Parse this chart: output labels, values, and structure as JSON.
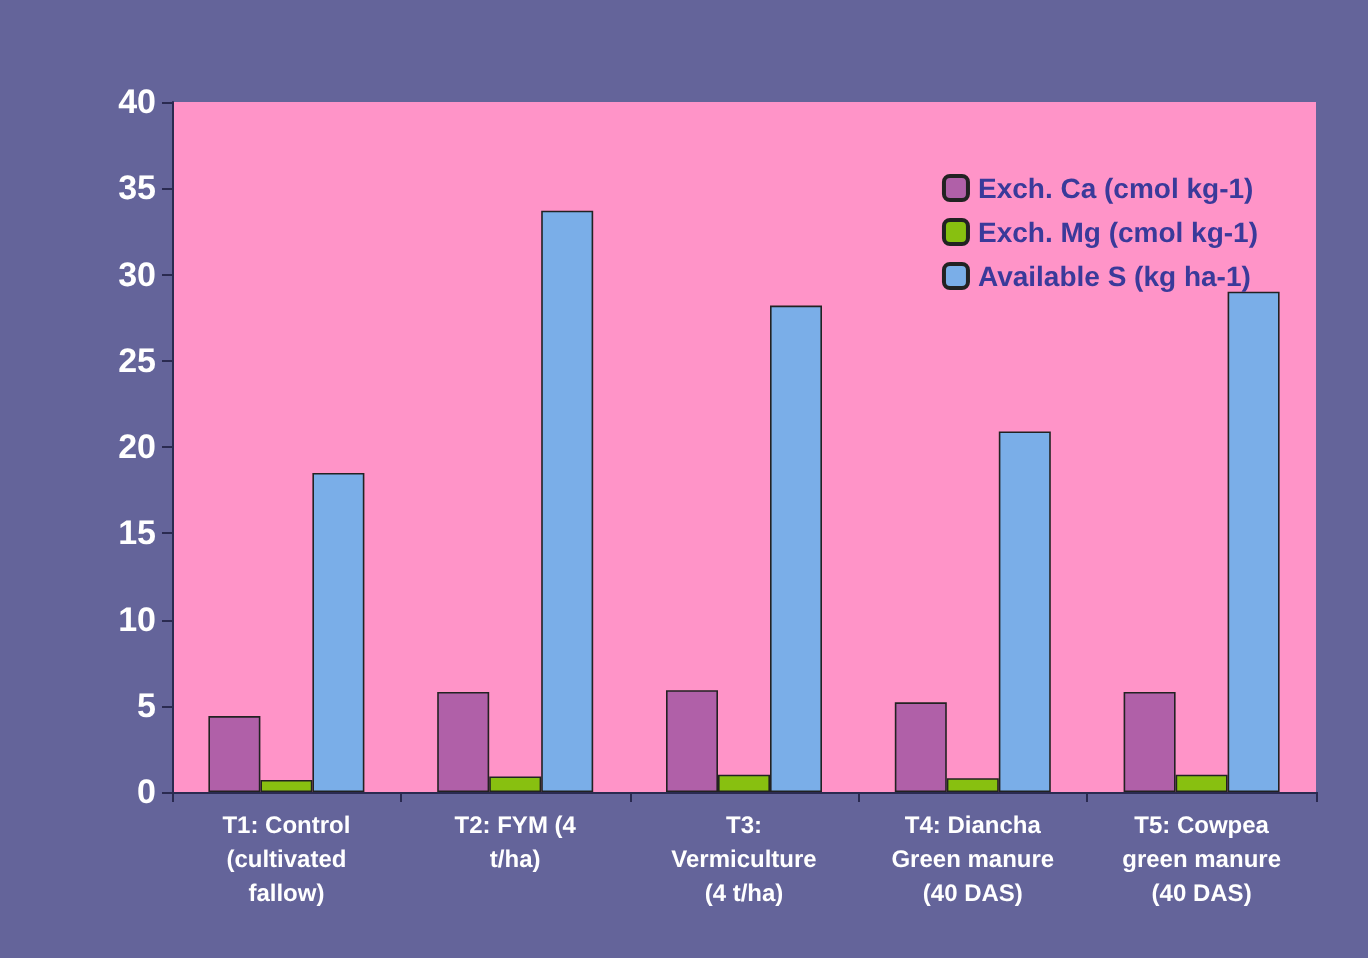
{
  "chart_data": {
    "type": "bar",
    "categories": [
      "T1: Control\n(cultivated\nfallow)",
      "T2: FYM (4\nt/ha)",
      "T3:\nVermiculture\n(4 t/ha)",
      "T4: Diancha\nGreen manure\n(40 DAS)",
      "T5: Cowpea\ngreen manure\n(40 DAS)"
    ],
    "series": [
      {
        "name": "Exch. Ca (cmol kg-1)",
        "color": "#b060a8",
        "values": [
          4.4,
          5.8,
          5.9,
          5.2,
          5.8
        ]
      },
      {
        "name": "Exch. Mg (cmol kg-1)",
        "color": "#88c010",
        "values": [
          0.7,
          0.9,
          1.0,
          0.8,
          1.0
        ]
      },
      {
        "name": "Available S (kg ha-1)",
        "color": "#7aaee8",
        "values": [
          18.5,
          33.7,
          28.2,
          20.9,
          29.0
        ]
      }
    ],
    "ylim": [
      0,
      40
    ],
    "yticks": [
      0,
      5,
      10,
      15,
      20,
      25,
      30,
      35,
      40
    ],
    "grid": false,
    "legend": "top right"
  }
}
